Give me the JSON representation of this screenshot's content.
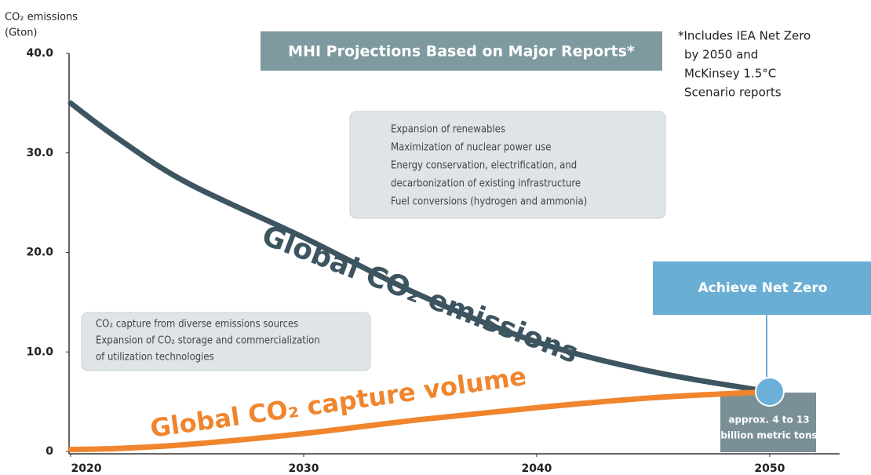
{
  "chart_data": {
    "type": "line",
    "title": "MHI Projections Based on Major Reports*",
    "y_label": [
      "CO₂ emissions",
      "(Gton)"
    ],
    "note": [
      "*Includes IEA Net Zero",
      "by 2050 and",
      "McKinsey 1.5°C",
      "Scenario reports"
    ],
    "x": [
      2020,
      2022,
      2025,
      2030,
      2035,
      2040,
      2045,
      2050
    ],
    "series": [
      {
        "name": "Global CO₂ emissions",
        "color": "#3d5560",
        "values": [
          35,
          31.5,
          27,
          21.5,
          15.7,
          11,
          8,
          6
        ]
      },
      {
        "name": "Global CO₂ capture volume",
        "color": "#f0852d",
        "values": [
          0.2,
          0.3,
          0.7,
          1.8,
          3.2,
          4.4,
          5.4,
          6
        ]
      }
    ],
    "xlim": [
      2020,
      2053
    ],
    "xticks": [
      2020,
      2030,
      2040,
      2050
    ],
    "ylim": [
      0,
      40
    ],
    "yticks": [
      0,
      {
        "value": 10,
        "label": "10.0"
      },
      {
        "value": 20,
        "label": "20.0"
      },
      {
        "value": 30,
        "label": "30.0"
      },
      {
        "value": 40,
        "label": "40.0"
      }
    ],
    "grid": false,
    "reduction_measures": [
      "Expansion of renewables",
      "Maximization of nuclear power use",
      "Energy conservation, electrification, and",
      "decarbonization of existing infrastructure",
      "Fuel conversions (hydrogen and ammonia)"
    ],
    "capture_measures": [
      "CO₂ capture from diverse emissions sources",
      "Expansion of CO₂ storage and commercialization",
      "of utilization technologies"
    ],
    "goal": "Achieve Net Zero",
    "capture_range": [
      "approx. 4 to 13",
      "billion metric tons"
    ]
  }
}
